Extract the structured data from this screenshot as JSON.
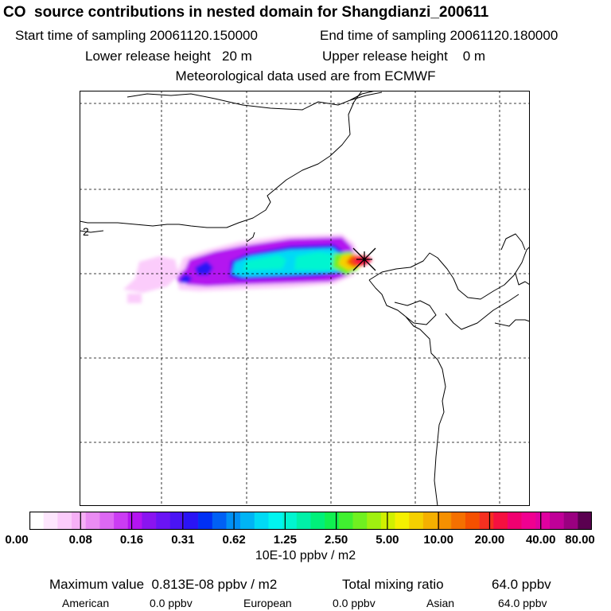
{
  "header": {
    "title": "CO  source contributions in nested domain for Shangdianzi_200611",
    "start_label": "Start time of sampling 20061120.150000",
    "end_label": "End time of sampling 20061120.180000",
    "lower_label": "Lower release height   20 m",
    "upper_label": "Upper release height    0 m",
    "met_label": "Meteorological data used are from ECMWF"
  },
  "colorbar": {
    "tick_labels": [
      "0.00",
      "0.08",
      "0.16",
      "0.31",
      "0.62",
      "1.25",
      "2.50",
      "5.00",
      "10.00",
      "20.00",
      "40.00",
      "80.00"
    ],
    "units": "10E-10 ppbv / m2",
    "colors": [
      "#ffffff",
      "#fde6fd",
      "#fbccfb",
      "#f6b0f6",
      "#ea8cf3",
      "#dd68f3",
      "#cb3cf3",
      "#b414f0",
      "#8a14f0",
      "#6a14f5",
      "#4a14f5",
      "#2a14f5",
      "#0030f5",
      "#0060f5",
      "#0090f5",
      "#00b4f5",
      "#00daf5",
      "#00f5f0",
      "#00f5d0",
      "#00f0a8",
      "#00f07a",
      "#10f050",
      "#40f030",
      "#70f020",
      "#a0f010",
      "#d0f000",
      "#f5f000",
      "#f5d000",
      "#f5b000",
      "#f59000",
      "#f57000",
      "#f55000",
      "#f53020",
      "#f51040",
      "#f00070",
      "#f00090",
      "#e000a0",
      "#c00098",
      "#9a0080",
      "#5a0050"
    ]
  },
  "summary": {
    "max_label": "Maximum value  0.813E-08 ppbv / m2",
    "total_label": "Total mixing ratio",
    "total_value": "64.0 ppbv",
    "regions": [
      {
        "name": "American",
        "value": "0.0 ppbv"
      },
      {
        "name": "European",
        "value": "0.0 ppbv"
      },
      {
        "name": "Asian",
        "value": "64.0 ppbv"
      }
    ]
  },
  "map": {
    "station_marker": "x-cross-icon",
    "coastline_label": "2",
    "colors": {
      "border": "#000000",
      "grid": "#000000",
      "plume_low": "#ea8cf3",
      "plume_mid": "#00f5d0",
      "plume_high": "#f51040"
    }
  }
}
